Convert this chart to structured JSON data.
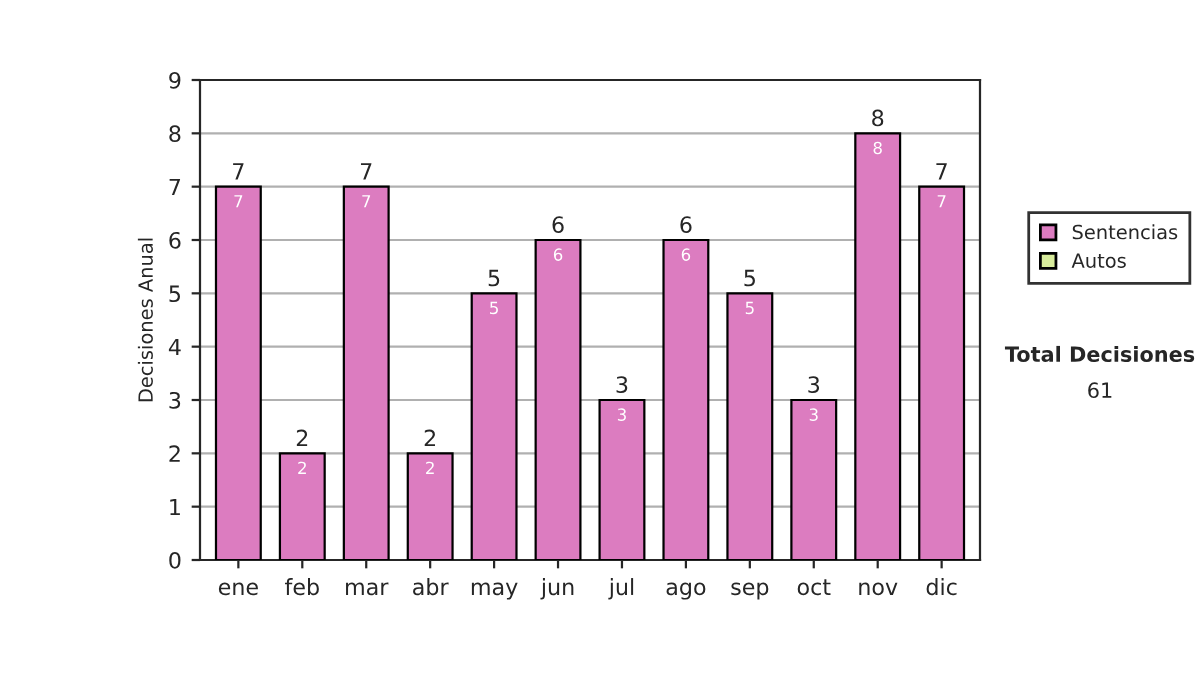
{
  "chart_data": {
    "type": "bar",
    "stacked": true,
    "ylabel": "Decisiones Anual",
    "categories": [
      "ene",
      "feb",
      "mar",
      "abr",
      "may",
      "jun",
      "jul",
      "ago",
      "sep",
      "oct",
      "nov",
      "dic"
    ],
    "series": [
      {
        "name": "Sentencias",
        "color": "#dc7cc0",
        "values": [
          7,
          2,
          7,
          2,
          5,
          6,
          3,
          6,
          5,
          3,
          8,
          7
        ],
        "value_labels": [
          "7",
          "2",
          "7",
          "2",
          "5",
          "6",
          "3",
          "6",
          "5",
          "3",
          "8",
          "7"
        ]
      },
      {
        "name": "Autos",
        "color": "#d8ec9c",
        "values": [
          null,
          null,
          null,
          null,
          null,
          null,
          null,
          null,
          null,
          null,
          null,
          null
        ]
      }
    ],
    "totals": [
      "7",
      "2",
      "7",
      "2",
      "5",
      "6",
      "3",
      "6",
      "5",
      "3",
      "8",
      "7"
    ],
    "ylim": [
      0,
      9
    ],
    "yticks": [
      0,
      1,
      2,
      3,
      4,
      5,
      6,
      7,
      8,
      9
    ],
    "grid": "y",
    "legend": "right",
    "annotations": [
      "Total Decisiones",
      "61"
    ]
  }
}
